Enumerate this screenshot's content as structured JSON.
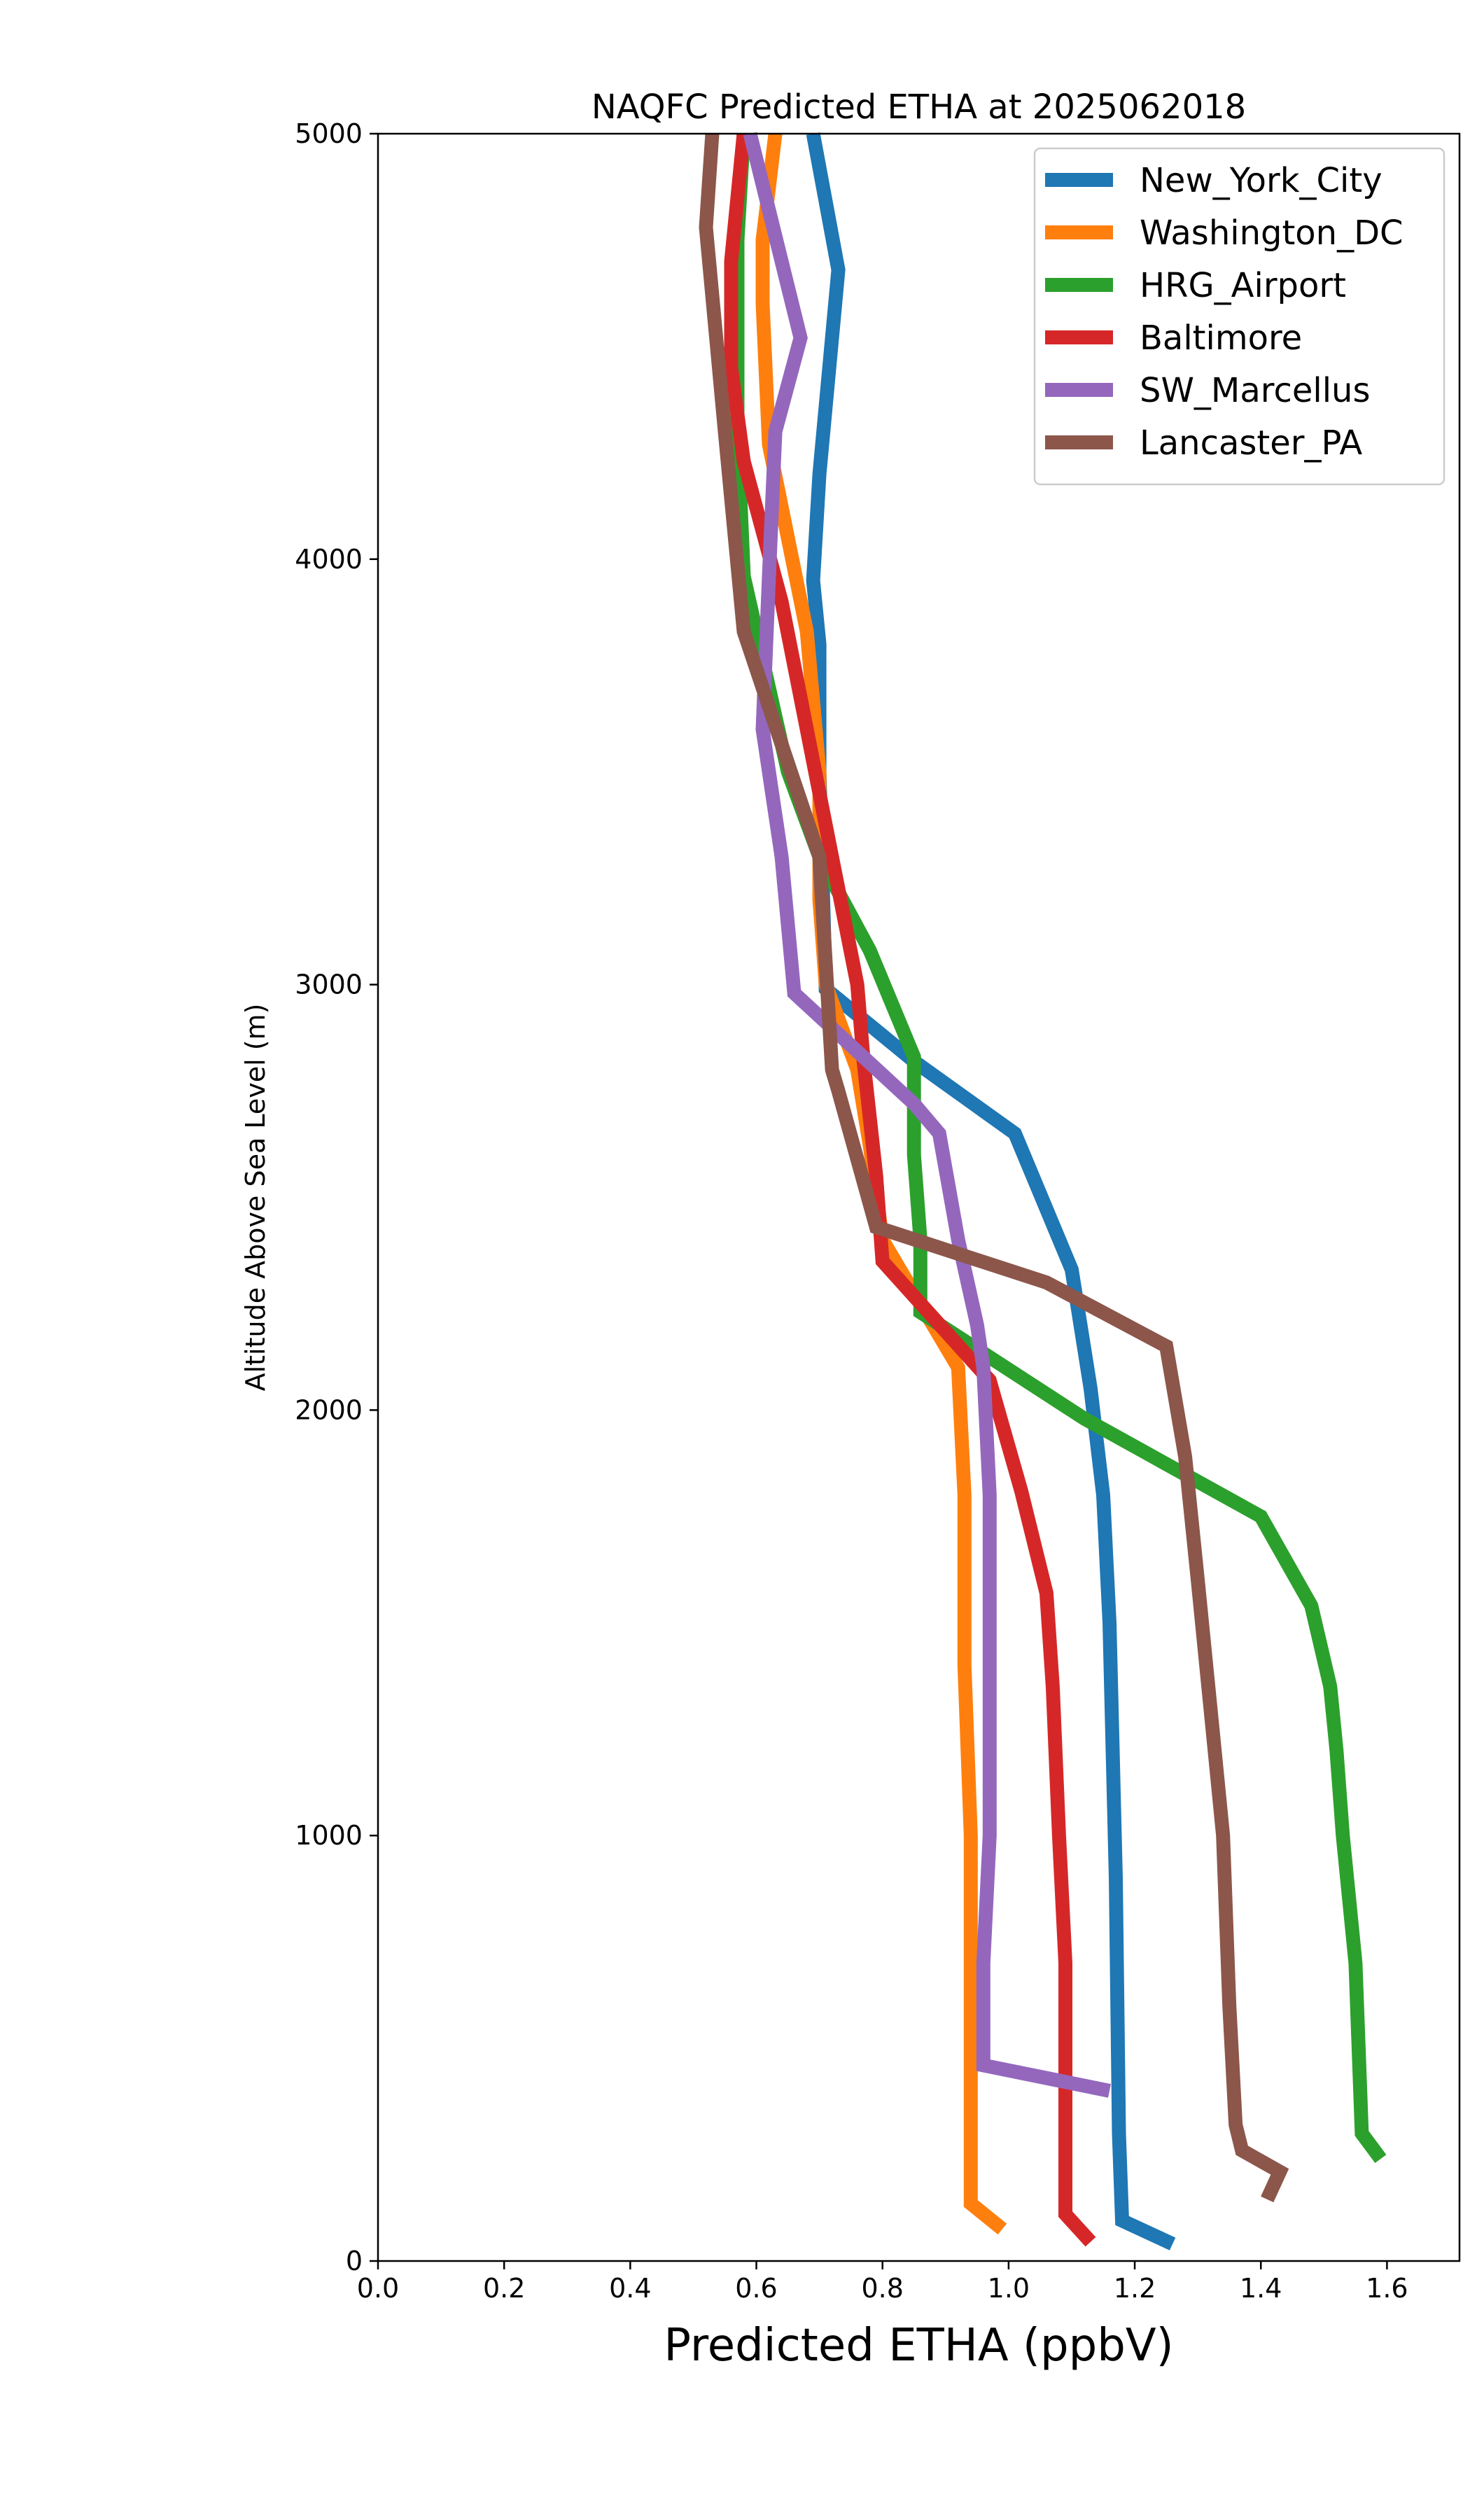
{
  "chart_data": {
    "type": "line",
    "title": "NAQFC Predicted ETHA at 2025062018",
    "xlabel": "Predicted ETHA (ppbV)",
    "ylabel": "Altitude Above Sea Level (m)",
    "xlim": [
      0.0,
      1.715
    ],
    "ylim": [
      0,
      5000
    ],
    "xticks": [
      0.0,
      0.2,
      0.4,
      0.6,
      0.8,
      1.0,
      1.2,
      1.4,
      1.6
    ],
    "xtick_labels": [
      "0.0",
      "0.2",
      "0.4",
      "0.6",
      "0.8",
      "1.0",
      "1.2",
      "1.4",
      "1.6"
    ],
    "yticks": [
      0,
      1000,
      2000,
      3000,
      4000,
      5000
    ],
    "ytick_labels": [
      "0",
      "1000",
      "2000",
      "3000",
      "4000",
      "5000"
    ],
    "grid": false,
    "legend_position": "top-right",
    "series": [
      {
        "name": "New_York_City",
        "color": "#1f77b4",
        "x": [
          1.26,
          1.18,
          1.175,
          1.17,
          1.16,
          1.15,
          1.13,
          1.1,
          1.01,
          0.85,
          0.71,
          0.7,
          0.7,
          0.69,
          0.7,
          0.73,
          0.69
        ],
        "y": [
          40,
          95,
          300,
          900,
          1500,
          1800,
          2050,
          2330,
          2650,
          2820,
          2990,
          3500,
          3800,
          3950,
          4200,
          4680,
          5000
        ]
      },
      {
        "name": "Washington_DC",
        "color": "#ff7f0e",
        "x": [
          0.99,
          0.94,
          0.94,
          0.94,
          0.93,
          0.93,
          0.92,
          0.8,
          0.78,
          0.76,
          0.71,
          0.7,
          0.7,
          0.68,
          0.62,
          0.61,
          0.61,
          0.63
        ],
        "y": [
          75,
          135,
          500,
          1000,
          1400,
          1800,
          2100,
          2400,
          2620,
          2800,
          3000,
          3200,
          3500,
          3830,
          4270,
          4600,
          4750,
          5000
        ]
      },
      {
        "name": "HRG_Airport",
        "color": "#2ca02c",
        "x": [
          1.59,
          1.56,
          1.55,
          1.53,
          1.52,
          1.51,
          1.48,
          1.4,
          1.12,
          0.86,
          0.86,
          0.85,
          0.85,
          0.78,
          0.7,
          0.65,
          0.58,
          0.57,
          0.57,
          0.58
        ],
        "y": [
          240,
          300,
          700,
          1000,
          1200,
          1350,
          1540,
          1750,
          1980,
          2230,
          2400,
          2600,
          2830,
          3080,
          3300,
          3500,
          3960,
          4300,
          4750,
          5000
        ]
      },
      {
        "name": "Baltimore",
        "color": "#d62728",
        "x": [
          1.13,
          1.09,
          1.09,
          1.09,
          1.08,
          1.07,
          1.06,
          1.02,
          0.97,
          0.8,
          0.79,
          0.77,
          0.76,
          0.72,
          0.64,
          0.58,
          0.56,
          0.56,
          0.58
        ],
        "y": [
          45,
          110,
          200,
          700,
          1000,
          1350,
          1570,
          1810,
          2070,
          2350,
          2550,
          2820,
          3000,
          3300,
          3900,
          4230,
          4450,
          4700,
          5000
        ]
      },
      {
        "name": "SW_Marcellus",
        "color": "#9467bd",
        "x": [
          1.16,
          0.96,
          0.96,
          0.97,
          0.97,
          0.97,
          0.96,
          0.95,
          0.92,
          0.89,
          0.85,
          0.66,
          0.64,
          0.61,
          0.62,
          0.63,
          0.67,
          0.59
        ],
        "y": [
          400,
          460,
          700,
          1000,
          1300,
          1800,
          2100,
          2200,
          2400,
          2650,
          2720,
          2980,
          3300,
          3600,
          3960,
          4300,
          4520,
          5000
        ]
      },
      {
        "name": "Lancaster_PA",
        "color": "#8c564b",
        "x": [
          1.41,
          1.43,
          1.37,
          1.36,
          1.35,
          1.34,
          1.32,
          1.3,
          1.28,
          1.25,
          1.06,
          0.79,
          0.73,
          0.72,
          0.7,
          0.58,
          0.55,
          0.52,
          0.53
        ],
        "y": [
          145,
          210,
          260,
          320,
          600,
          1000,
          1300,
          1600,
          1890,
          2150,
          2300,
          2430,
          2750,
          2800,
          3300,
          3830,
          4300,
          4780,
          5000
        ]
      }
    ]
  }
}
